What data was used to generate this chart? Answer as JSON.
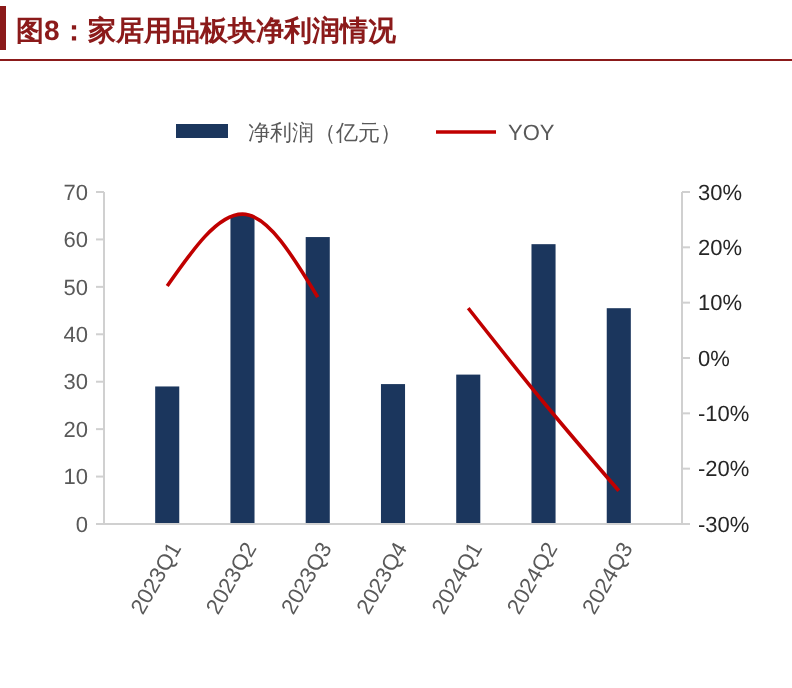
{
  "chart_data": {
    "type": "bar",
    "title": "图8：家居用品板块净利润情况",
    "categories": [
      "2023Q1",
      "2023Q2",
      "2023Q3",
      "2023Q4",
      "2024Q1",
      "2024Q2",
      "2024Q3"
    ],
    "series": [
      {
        "name": "净利润（亿元）",
        "color": "#1b365d",
        "values": [
          29,
          65,
          60.5,
          29.5,
          31.5,
          59,
          45.5
        ]
      },
      {
        "name": "YOY",
        "type": "line",
        "axis": "y2",
        "color": "#c00000",
        "values": [
          13,
          26,
          11,
          null,
          9,
          -8,
          -24
        ]
      }
    ],
    "ylim": [
      0,
      70
    ],
    "yticks": [
      0,
      10,
      20,
      30,
      40,
      50,
      60,
      70
    ],
    "y2lim": [
      -30,
      30
    ],
    "y2ticks": [
      {
        "value": -30,
        "label": "-30%"
      },
      {
        "value": -20,
        "label": "-20%"
      },
      {
        "value": -10,
        "label": "-10%"
      },
      {
        "value": 0,
        "label": "0%"
      },
      {
        "value": 10,
        "label": "10%"
      },
      {
        "value": 20,
        "label": "20%"
      },
      {
        "value": 30,
        "label": "30%"
      }
    ],
    "legend": "top",
    "grid": false,
    "marker": "none",
    "line_style": "solid"
  }
}
